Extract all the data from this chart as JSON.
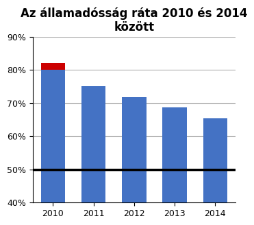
{
  "title": "Az államadósság ráta 2010 és 2014\nközött",
  "years": [
    2010,
    2011,
    2012,
    2013,
    2014
  ],
  "blue_values": [
    80.0,
    75.0,
    71.8,
    68.8,
    65.5
  ],
  "red_extra": [
    2.0,
    0,
    0,
    0,
    0
  ],
  "bar_color": "#4472C4",
  "red_color": "#CC0000",
  "hline_y": 50,
  "hline_color": "#000000",
  "ylim": [
    40,
    90
  ],
  "yticks": [
    40,
    50,
    60,
    70,
    80,
    90
  ],
  "ytick_labels": [
    "40%",
    "50%",
    "60%",
    "70%",
    "80%",
    "90%"
  ],
  "background_color": "#ffffff",
  "title_fontsize": 12,
  "bar_width": 0.6,
  "grid_color": "#b0b0b0"
}
